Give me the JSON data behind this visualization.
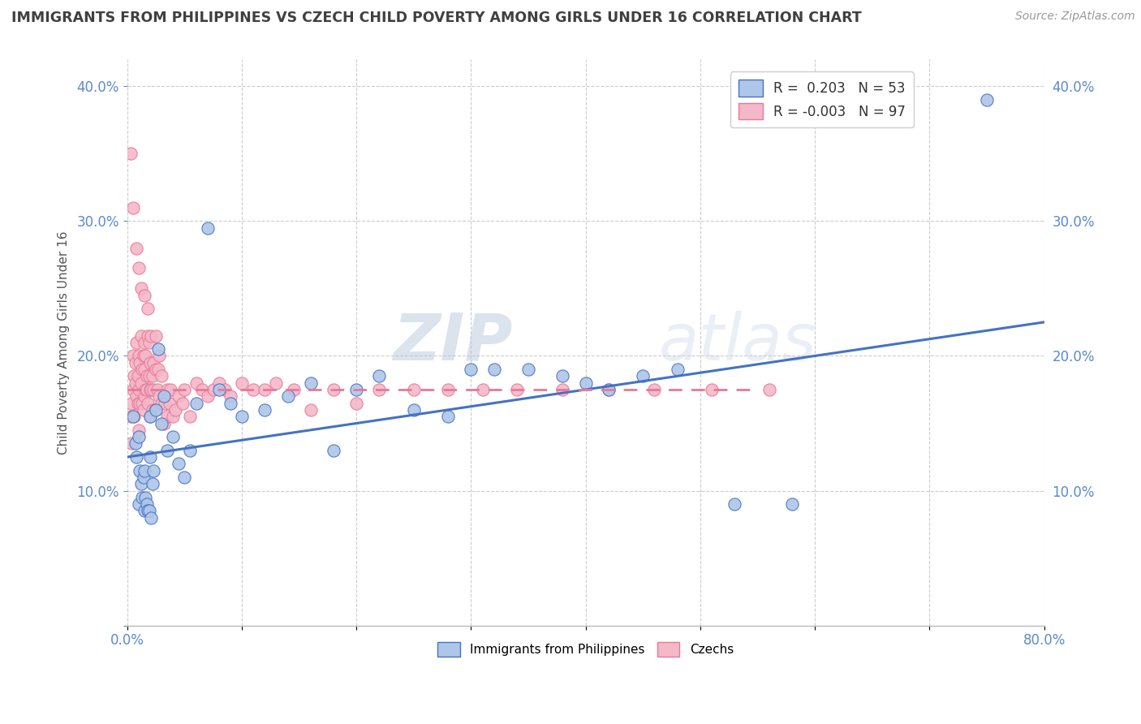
{
  "title": "IMMIGRANTS FROM PHILIPPINES VS CZECH CHILD POVERTY AMONG GIRLS UNDER 16 CORRELATION CHART",
  "source": "Source: ZipAtlas.com",
  "ylabel": "Child Poverty Among Girls Under 16",
  "xlim": [
    0.0,
    0.8
  ],
  "ylim": [
    0.0,
    0.42
  ],
  "xticks": [
    0.0,
    0.1,
    0.2,
    0.3,
    0.4,
    0.5,
    0.6,
    0.7,
    0.8
  ],
  "xticklabels": [
    "0.0%",
    "",
    "",
    "",
    "",
    "",
    "",
    "",
    "80.0%"
  ],
  "yticks": [
    0.0,
    0.1,
    0.2,
    0.3,
    0.4
  ],
  "yticklabels": [
    "",
    "10.0%",
    "20.0%",
    "30.0%",
    "40.0%"
  ],
  "legend_entries": [
    {
      "label": "R =  0.203   N = 53",
      "color": "#aec6e8"
    },
    {
      "label": "R = -0.003   N = 97",
      "color": "#f4b8c8"
    }
  ],
  "series1_color": "#aec6e8",
  "series2_color": "#f4b8c8",
  "trendline1_color": "#4472c4",
  "trendline2_color": "#e87898",
  "watermark_zip": "ZIP",
  "watermark_atlas": "atlas",
  "blue_R": 0.203,
  "pink_R": -0.003,
  "blue_trendline": [
    0.0,
    0.8,
    0.125,
    0.225
  ],
  "pink_trendline": [
    0.0,
    0.55,
    0.175,
    0.175
  ],
  "blue_scatter_x": [
    0.005,
    0.007,
    0.008,
    0.01,
    0.01,
    0.011,
    0.012,
    0.013,
    0.014,
    0.015,
    0.015,
    0.016,
    0.017,
    0.018,
    0.019,
    0.02,
    0.02,
    0.021,
    0.022,
    0.023,
    0.025,
    0.027,
    0.03,
    0.032,
    0.035,
    0.04,
    0.045,
    0.05,
    0.055,
    0.06,
    0.07,
    0.08,
    0.09,
    0.1,
    0.12,
    0.14,
    0.16,
    0.18,
    0.2,
    0.22,
    0.25,
    0.28,
    0.3,
    0.32,
    0.35,
    0.38,
    0.4,
    0.42,
    0.45,
    0.48,
    0.53,
    0.58,
    0.75
  ],
  "blue_scatter_y": [
    0.155,
    0.135,
    0.125,
    0.14,
    0.09,
    0.115,
    0.105,
    0.095,
    0.11,
    0.115,
    0.085,
    0.095,
    0.09,
    0.085,
    0.085,
    0.155,
    0.125,
    0.08,
    0.105,
    0.115,
    0.16,
    0.205,
    0.15,
    0.17,
    0.13,
    0.14,
    0.12,
    0.11,
    0.13,
    0.165,
    0.295,
    0.175,
    0.165,
    0.155,
    0.16,
    0.17,
    0.18,
    0.13,
    0.175,
    0.185,
    0.16,
    0.155,
    0.19,
    0.19,
    0.19,
    0.185,
    0.18,
    0.175,
    0.185,
    0.19,
    0.09,
    0.09,
    0.39
  ],
  "pink_scatter_x": [
    0.003,
    0.004,
    0.004,
    0.005,
    0.005,
    0.006,
    0.006,
    0.007,
    0.007,
    0.008,
    0.008,
    0.009,
    0.009,
    0.01,
    0.01,
    0.01,
    0.011,
    0.011,
    0.012,
    0.012,
    0.013,
    0.013,
    0.014,
    0.014,
    0.015,
    0.015,
    0.015,
    0.016,
    0.016,
    0.017,
    0.017,
    0.018,
    0.018,
    0.019,
    0.019,
    0.02,
    0.02,
    0.02,
    0.021,
    0.021,
    0.022,
    0.022,
    0.023,
    0.023,
    0.024,
    0.025,
    0.025,
    0.026,
    0.027,
    0.028,
    0.028,
    0.03,
    0.03,
    0.032,
    0.033,
    0.035,
    0.035,
    0.037,
    0.038,
    0.04,
    0.042,
    0.045,
    0.048,
    0.05,
    0.055,
    0.06,
    0.065,
    0.07,
    0.075,
    0.08,
    0.085,
    0.09,
    0.1,
    0.11,
    0.12,
    0.13,
    0.145,
    0.16,
    0.18,
    0.2,
    0.22,
    0.25,
    0.28,
    0.31,
    0.34,
    0.38,
    0.42,
    0.46,
    0.51,
    0.56,
    0.003,
    0.005,
    0.008,
    0.01,
    0.012,
    0.015,
    0.018
  ],
  "pink_scatter_y": [
    0.155,
    0.135,
    0.165,
    0.175,
    0.2,
    0.155,
    0.185,
    0.18,
    0.195,
    0.17,
    0.21,
    0.185,
    0.165,
    0.175,
    0.2,
    0.145,
    0.165,
    0.195,
    0.18,
    0.215,
    0.165,
    0.19,
    0.16,
    0.2,
    0.17,
    0.19,
    0.21,
    0.175,
    0.2,
    0.175,
    0.185,
    0.215,
    0.165,
    0.185,
    0.21,
    0.175,
    0.195,
    0.155,
    0.175,
    0.215,
    0.16,
    0.185,
    0.175,
    0.195,
    0.16,
    0.19,
    0.215,
    0.175,
    0.19,
    0.2,
    0.17,
    0.165,
    0.185,
    0.15,
    0.165,
    0.155,
    0.175,
    0.165,
    0.175,
    0.155,
    0.16,
    0.17,
    0.165,
    0.175,
    0.155,
    0.18,
    0.175,
    0.17,
    0.175,
    0.18,
    0.175,
    0.17,
    0.18,
    0.175,
    0.175,
    0.18,
    0.175,
    0.16,
    0.175,
    0.165,
    0.175,
    0.175,
    0.175,
    0.175,
    0.175,
    0.175,
    0.175,
    0.175,
    0.175,
    0.175,
    0.35,
    0.31,
    0.28,
    0.265,
    0.25,
    0.245,
    0.235
  ],
  "background_color": "#ffffff",
  "grid_color": "#cccccc",
  "title_color": "#404040",
  "axis_label_color": "#555555",
  "tick_color": "#5a8ad0"
}
